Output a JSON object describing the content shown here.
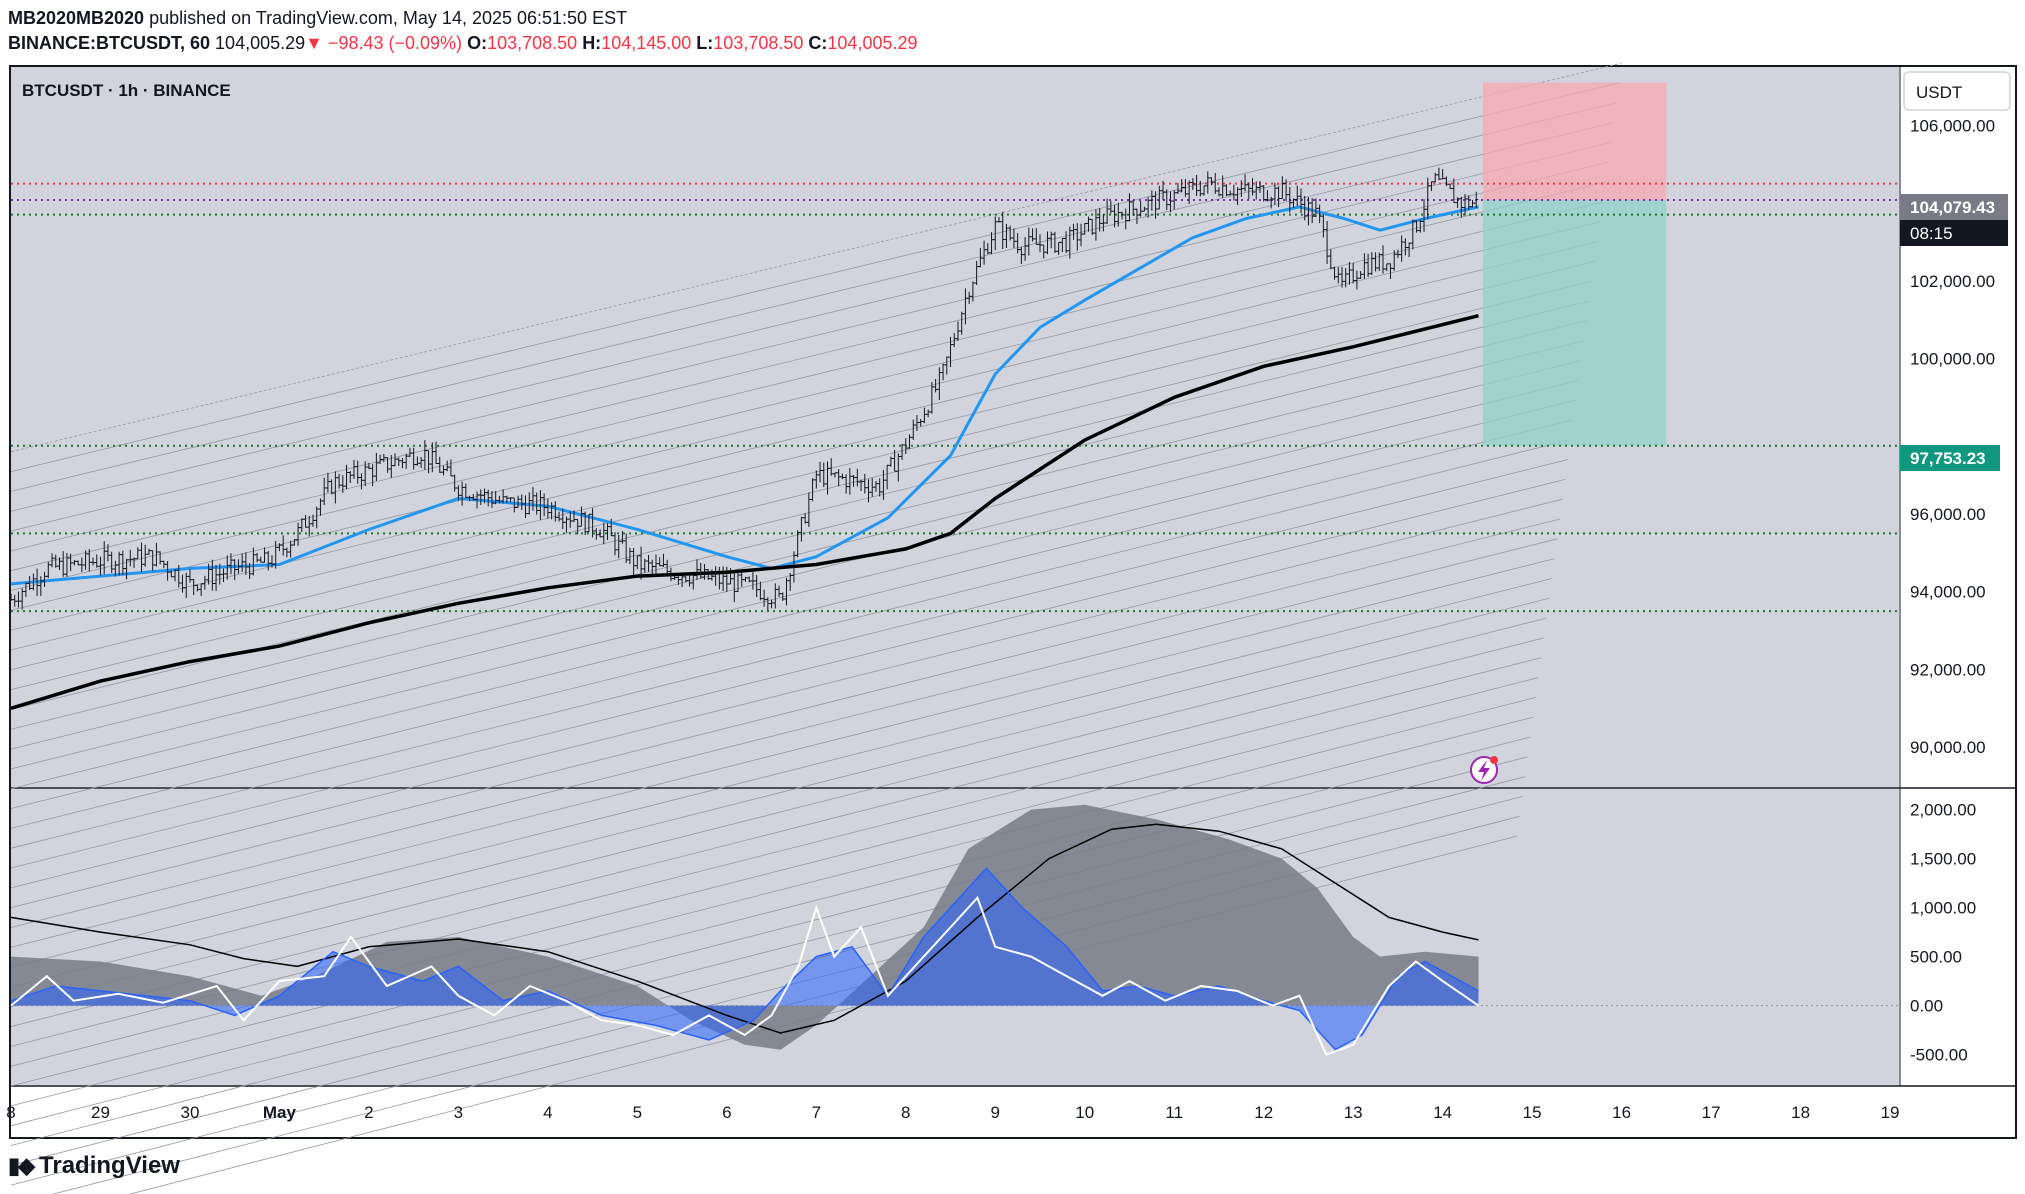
{
  "header": {
    "author": "MB2020MB2020",
    "published_text": "published on TradingView.com, May 14, 2025 06:51:50 EST",
    "symbol": "BINANCE:BTCUSDT, 60",
    "last": "104,005.29",
    "change": "▼ −98.43 (−0.09%)",
    "o_label": "O:",
    "o_value": "103,708.50",
    "h_label": "H:",
    "h_value": "104,145.00",
    "l_label": "L:",
    "l_value": "103,708.50",
    "c_label": "C:",
    "c_value": "104,005.29"
  },
  "pane_title": "BTCUSDT · 1h · BINANCE",
  "currency_button": "USDT",
  "price_badge": "104,079.43",
  "countdown_badge": "08:15",
  "target_badge": "97,753.23",
  "footer_logo": "TradingView",
  "colors": {
    "background": "#d1d4dc",
    "ma_fast": "#2196f3",
    "ma_slow": "#000000",
    "level_green": "#1b7a2a",
    "level_red": "#f23645",
    "level_purple": "#7b2fb5",
    "stop_zone": "#f7a8b0",
    "target_zone": "#8fd3c9",
    "hist_gray": "#787b86",
    "hist_blue": "#2962ff"
  },
  "chart_data": [
    {
      "type": "candlestick",
      "title": "BTCUSDT · 1h · BINANCE",
      "y_axis": {
        "ticks": [
          "106,000.00",
          "102,000.00",
          "100,000.00",
          "96,000.00",
          "94,000.00",
          "92,000.00",
          "90,000.00"
        ],
        "tick_values": [
          106000,
          102000,
          100000,
          96000,
          94000,
          92000,
          90000
        ],
        "range": [
          89000,
          107500
        ]
      },
      "x_axis": {
        "ticks": [
          "8",
          "29",
          "30",
          "May",
          "2",
          "3",
          "4",
          "5",
          "6",
          "7",
          "8",
          "9",
          "10",
          "11",
          "12",
          "13",
          "14",
          "15",
          "16",
          "17",
          "18",
          "19"
        ],
        "tick_days": [
          -2,
          -1,
          0,
          1,
          2,
          3,
          4,
          5,
          6,
          7,
          8,
          9,
          10,
          11,
          12,
          13,
          14,
          15,
          16,
          17,
          18,
          19
        ],
        "range_days": [
          -2.0,
          19.1
        ]
      },
      "price_path": [
        [
          -2.0,
          93800
        ],
        [
          -1.6,
          94600
        ],
        [
          -1.0,
          94800
        ],
        [
          -0.4,
          94900
        ],
        [
          0.0,
          94200
        ],
        [
          0.5,
          94600
        ],
        [
          0.9,
          94800
        ],
        [
          1.2,
          95500
        ],
        [
          1.6,
          96800
        ],
        [
          2.1,
          97200
        ],
        [
          2.6,
          97600
        ],
        [
          3.0,
          96700
        ],
        [
          3.5,
          96300
        ],
        [
          4.0,
          96200
        ],
        [
          4.6,
          95600
        ],
        [
          5.0,
          94700
        ],
        [
          5.4,
          94500
        ],
        [
          5.9,
          94300
        ],
        [
          6.3,
          94100
        ],
        [
          6.6,
          93800
        ],
        [
          7.0,
          97000
        ],
        [
          7.3,
          96900
        ],
        [
          7.7,
          96700
        ],
        [
          8.0,
          97800
        ],
        [
          8.4,
          99500
        ],
        [
          8.7,
          101800
        ],
        [
          9.0,
          103400
        ],
        [
          9.3,
          102900
        ],
        [
          9.8,
          103000
        ],
        [
          10.2,
          103600
        ],
        [
          10.6,
          103900
        ],
        [
          11.0,
          104200
        ],
        [
          11.4,
          104500
        ],
        [
          11.8,
          104300
        ],
        [
          12.2,
          104300
        ],
        [
          12.6,
          103700
        ],
        [
          12.85,
          101800
        ],
        [
          13.1,
          102400
        ],
        [
          13.4,
          102500
        ],
        [
          13.7,
          103400
        ],
        [
          13.9,
          104600
        ],
        [
          14.2,
          104000
        ],
        [
          14.4,
          104005
        ]
      ],
      "moving_averages": [
        {
          "name": "",
          "color": "#2196f3",
          "points": [
            [
              -2.0,
              94200
            ],
            [
              0.0,
              94600
            ],
            [
              1.0,
              94700
            ],
            [
              2.0,
              95600
            ],
            [
              3.0,
              96400
            ],
            [
              4.0,
              96200
            ],
            [
              5.0,
              95600
            ],
            [
              6.0,
              94900
            ],
            [
              6.5,
              94600
            ],
            [
              7.0,
              94900
            ],
            [
              7.8,
              95900
            ],
            [
              8.5,
              97500
            ],
            [
              9.0,
              99600
            ],
            [
              9.5,
              100800
            ],
            [
              10.0,
              101500
            ],
            [
              10.6,
              102300
            ],
            [
              11.2,
              103100
            ],
            [
              11.8,
              103600
            ],
            [
              12.4,
              103900
            ],
            [
              12.9,
              103600
            ],
            [
              13.3,
              103300
            ],
            [
              13.8,
              103600
            ],
            [
              14.4,
              103900
            ]
          ]
        },
        {
          "name": "",
          "color": "#000000",
          "points": [
            [
              -2.0,
              91000
            ],
            [
              -1.0,
              91700
            ],
            [
              0.0,
              92200
            ],
            [
              1.0,
              92600
            ],
            [
              2.0,
              93200
            ],
            [
              3.0,
              93700
            ],
            [
              4.0,
              94100
            ],
            [
              5.0,
              94400
            ],
            [
              6.0,
              94500
            ],
            [
              7.0,
              94700
            ],
            [
              8.0,
              95100
            ],
            [
              8.5,
              95500
            ],
            [
              9.0,
              96400
            ],
            [
              10.0,
              97900
            ],
            [
              11.0,
              99000
            ],
            [
              12.0,
              99800
            ],
            [
              13.0,
              100300
            ],
            [
              14.4,
              101100
            ]
          ]
        }
      ],
      "horizontal_levels": [
        {
          "price": 104500,
          "color": "#f23645",
          "style": "dotted"
        },
        {
          "price": 104079.43,
          "color": "#7b2fb5",
          "style": "dotted"
        },
        {
          "price": 103700,
          "color": "#1b7a2a",
          "style": "dotted"
        },
        {
          "price": 97753.23,
          "color": "#1b7a2a",
          "style": "dotted"
        },
        {
          "price": 95500,
          "color": "#1b7a2a",
          "style": "dotted"
        },
        {
          "price": 93500,
          "color": "#1b7a2a",
          "style": "dotted"
        }
      ],
      "short_position": {
        "entry": 104079.43,
        "stop": 107100,
        "target": 97753.23,
        "from_day": 14.45,
        "to_day": 16.5
      },
      "regression_channel": {
        "from_day": -2.0,
        "to_day": 16.0,
        "start_price": 97600,
        "end_price": 107600,
        "line_step": 510,
        "line_count": 40
      }
    },
    {
      "type": "area",
      "y_axis": {
        "ticks": [
          "2,000.00",
          "1,500.00",
          "1,000.00",
          "500.00",
          "0.00",
          "-500.00"
        ],
        "tick_values": [
          2000,
          1500,
          1000,
          500,
          0,
          -500
        ],
        "range": [
          -800,
          2200
        ]
      },
      "x_range_days": [
        -2.0,
        19.1
      ],
      "gray_area": [
        [
          -2.0,
          500
        ],
        [
          -1.0,
          450
        ],
        [
          0.0,
          300
        ],
        [
          0.8,
          100
        ],
        [
          1.4,
          300
        ],
        [
          2.2,
          650
        ],
        [
          3.0,
          700
        ],
        [
          4.0,
          500
        ],
        [
          5.0,
          200
        ],
        [
          5.6,
          -150
        ],
        [
          6.2,
          -400
        ],
        [
          6.6,
          -450
        ],
        [
          7.0,
          -200
        ],
        [
          7.6,
          300
        ],
        [
          8.2,
          800
        ],
        [
          8.7,
          1600
        ],
        [
          9.4,
          2000
        ],
        [
          10.0,
          2050
        ],
        [
          10.8,
          1900
        ],
        [
          11.6,
          1700
        ],
        [
          12.2,
          1500
        ],
        [
          12.6,
          1200
        ],
        [
          13.0,
          700
        ],
        [
          13.3,
          500
        ],
        [
          13.8,
          550
        ],
        [
          14.4,
          500
        ]
      ],
      "blue_area": [
        [
          -2.0,
          50
        ],
        [
          -1.5,
          200
        ],
        [
          -1.0,
          150
        ],
        [
          0.0,
          50
        ],
        [
          0.5,
          -100
        ],
        [
          1.0,
          100
        ],
        [
          1.6,
          550
        ],
        [
          2.0,
          400
        ],
        [
          2.6,
          250
        ],
        [
          3.0,
          400
        ],
        [
          3.5,
          50
        ],
        [
          4.0,
          150
        ],
        [
          4.6,
          -100
        ],
        [
          5.2,
          -200
        ],
        [
          5.8,
          -350
        ],
        [
          6.3,
          -150
        ],
        [
          6.6,
          150
        ],
        [
          7.0,
          500
        ],
        [
          7.4,
          600
        ],
        [
          7.8,
          100
        ],
        [
          8.2,
          700
        ],
        [
          8.5,
          1000
        ],
        [
          8.9,
          1400
        ],
        [
          9.3,
          1000
        ],
        [
          9.8,
          600
        ],
        [
          10.2,
          150
        ],
        [
          10.6,
          200
        ],
        [
          11.0,
          100
        ],
        [
          11.5,
          200
        ],
        [
          12.0,
          50
        ],
        [
          12.4,
          -50
        ],
        [
          12.8,
          -450
        ],
        [
          13.1,
          -300
        ],
        [
          13.5,
          300
        ],
        [
          13.8,
          450
        ],
        [
          14.4,
          150
        ]
      ],
      "signal_line": [
        [
          -2.0,
          900
        ],
        [
          -1.0,
          750
        ],
        [
          0.0,
          620
        ],
        [
          0.6,
          480
        ],
        [
          1.2,
          400
        ],
        [
          2.0,
          600
        ],
        [
          3.0,
          680
        ],
        [
          4.0,
          550
        ],
        [
          5.0,
          250
        ],
        [
          6.0,
          -100
        ],
        [
          6.6,
          -280
        ],
        [
          7.2,
          -150
        ],
        [
          8.0,
          250
        ],
        [
          8.8,
          900
        ],
        [
          9.6,
          1500
        ],
        [
          10.3,
          1800
        ],
        [
          10.8,
          1850
        ],
        [
          11.5,
          1780
        ],
        [
          12.2,
          1600
        ],
        [
          12.8,
          1250
        ],
        [
          13.4,
          900
        ],
        [
          14.0,
          750
        ],
        [
          14.4,
          670
        ]
      ],
      "fast_line": [
        [
          -2.0,
          0
        ],
        [
          -1.6,
          300
        ],
        [
          -1.3,
          50
        ],
        [
          -0.8,
          120
        ],
        [
          -0.3,
          30
        ],
        [
          0.3,
          200
        ],
        [
          0.6,
          -150
        ],
        [
          1.0,
          250
        ],
        [
          1.5,
          300
        ],
        [
          1.8,
          700
        ],
        [
          2.2,
          200
        ],
        [
          2.7,
          400
        ],
        [
          3.0,
          100
        ],
        [
          3.4,
          -100
        ],
        [
          3.8,
          200
        ],
        [
          4.2,
          50
        ],
        [
          4.6,
          -150
        ],
        [
          5.0,
          -200
        ],
        [
          5.4,
          -300
        ],
        [
          5.8,
          -100
        ],
        [
          6.2,
          -300
        ],
        [
          6.5,
          -100
        ],
        [
          6.8,
          400
        ],
        [
          7.0,
          1000
        ],
        [
          7.2,
          500
        ],
        [
          7.5,
          800
        ],
        [
          7.8,
          100
        ],
        [
          8.1,
          400
        ],
        [
          8.4,
          700
        ],
        [
          8.8,
          1100
        ],
        [
          9.0,
          600
        ],
        [
          9.4,
          500
        ],
        [
          9.8,
          300
        ],
        [
          10.2,
          100
        ],
        [
          10.5,
          250
        ],
        [
          10.9,
          50
        ],
        [
          11.3,
          200
        ],
        [
          11.7,
          150
        ],
        [
          12.1,
          0
        ],
        [
          12.4,
          100
        ],
        [
          12.7,
          -500
        ],
        [
          13.0,
          -400
        ],
        [
          13.4,
          200
        ],
        [
          13.7,
          450
        ],
        [
          14.0,
          250
        ],
        [
          14.4,
          0
        ]
      ]
    }
  ]
}
